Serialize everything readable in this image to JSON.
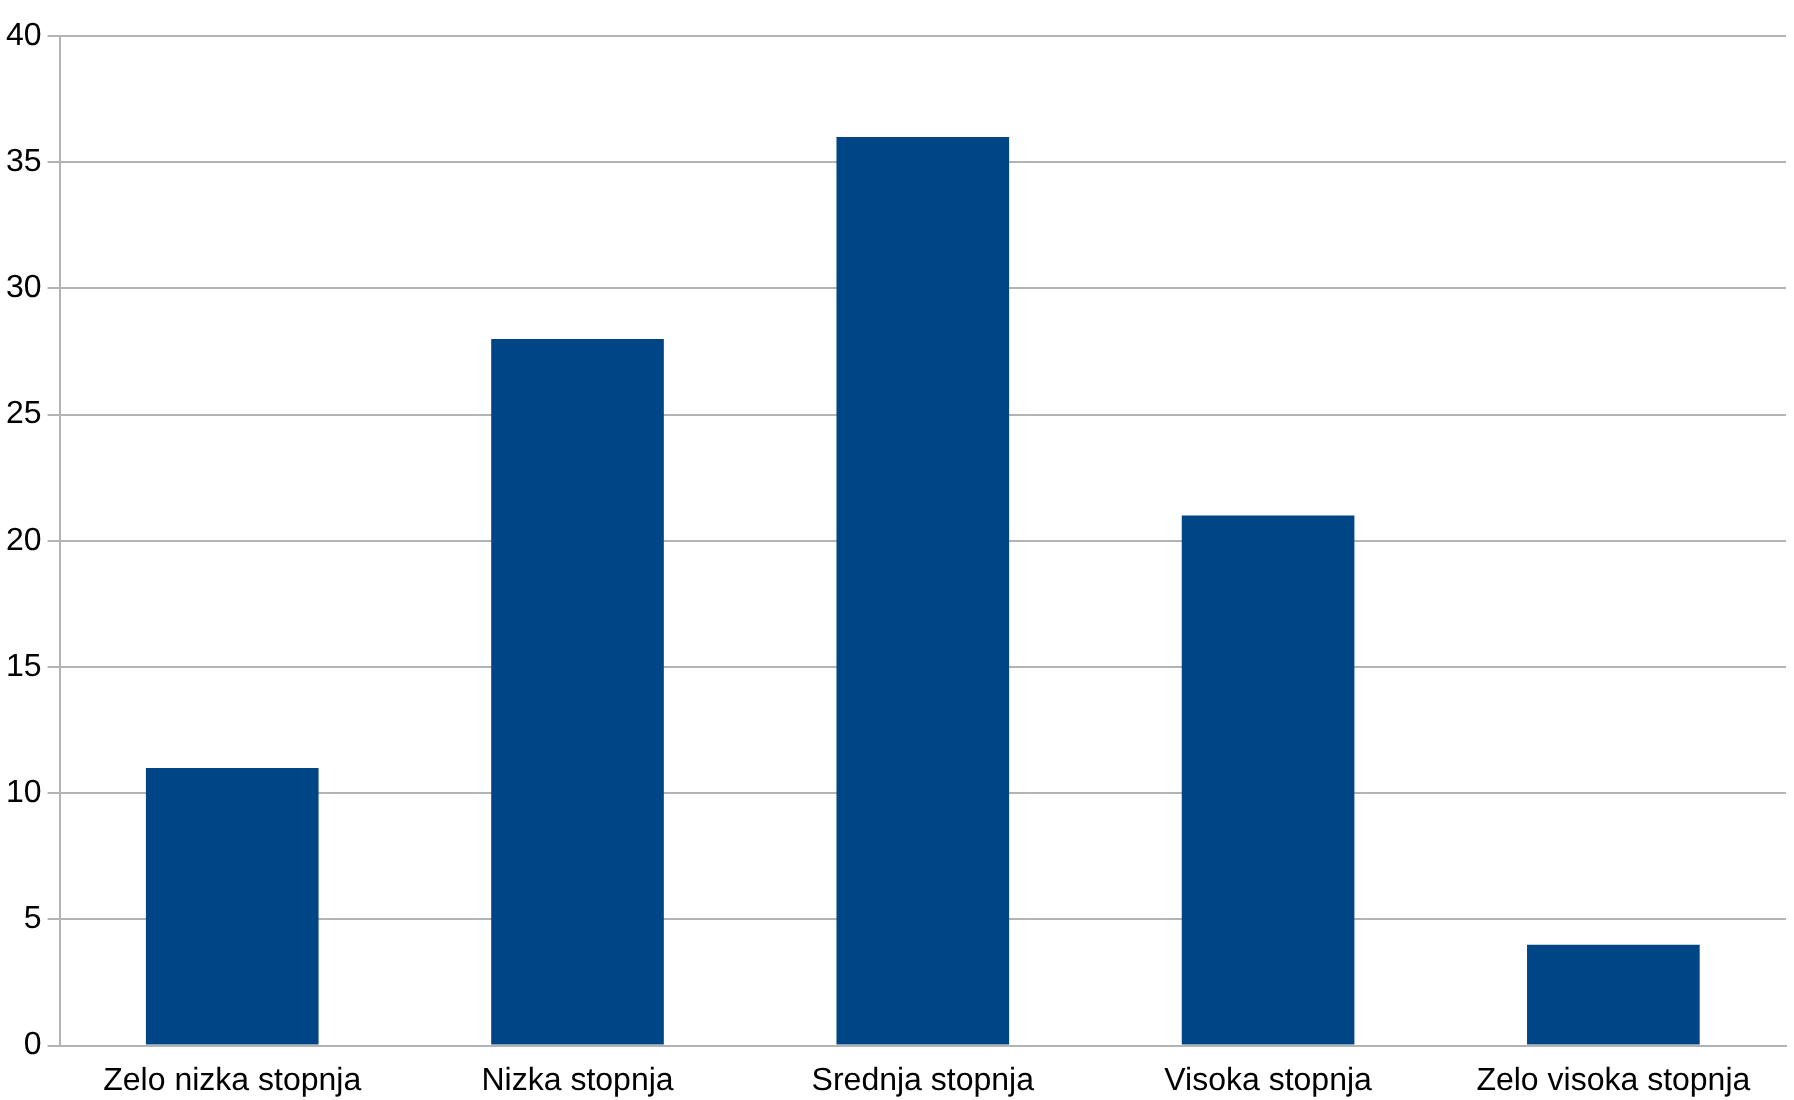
{
  "chart_data": {
    "type": "bar",
    "categories": [
      "Zelo nizka stopnja",
      "Nizka stopnja",
      "Srednja stopnja",
      "Visoka stopnja",
      "Zelo visoka stopnja"
    ],
    "values": [
      11,
      28,
      36,
      21,
      4
    ],
    "color": "#004586",
    "ylim": [
      0,
      40
    ],
    "yticks": [
      0,
      5,
      10,
      15,
      20,
      25,
      30,
      35,
      40
    ],
    "grid": "y"
  }
}
